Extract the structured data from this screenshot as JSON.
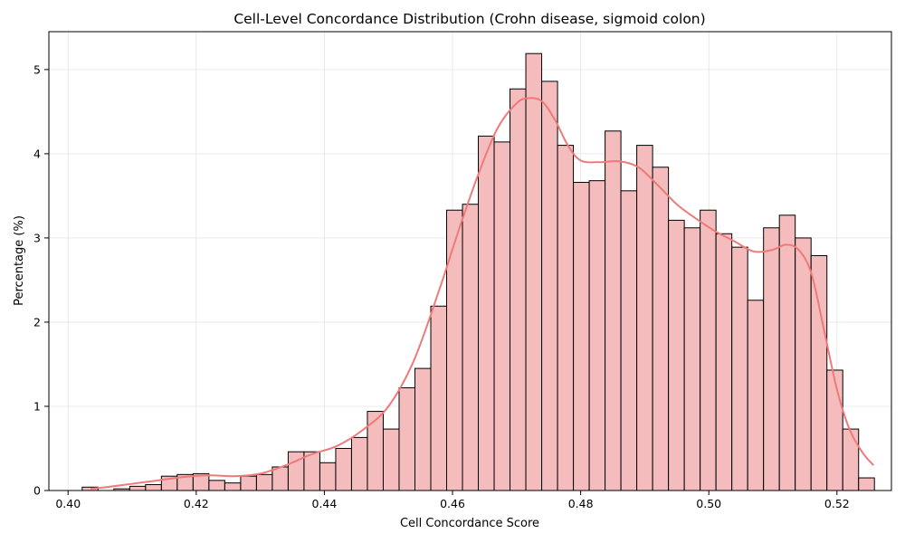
{
  "chart_data": {
    "type": "bar",
    "subtype": "histogram",
    "title": "Cell-Level Concordance Distribution (Crohn disease, sigmoid colon)",
    "xlabel": "Cell Concordance Score",
    "ylabel": "Percentage (%)",
    "xlim": [
      0.397,
      0.5285
    ],
    "ylim": [
      0,
      5.45
    ],
    "xticks": [
      0.4,
      0.42,
      0.44,
      0.46,
      0.48,
      0.5,
      0.52
    ],
    "xtick_labels": [
      "0.40",
      "0.42",
      "0.44",
      "0.46",
      "0.48",
      "0.50",
      "0.52"
    ],
    "yticks": [
      0,
      1,
      2,
      3,
      4,
      5
    ],
    "ytick_labels": [
      "0",
      "1",
      "2",
      "3",
      "4",
      "5"
    ],
    "grid": true,
    "legend": "none",
    "bin_start": 0.4022,
    "bin_width": 0.002473,
    "values": [
      0.04,
      0.0,
      0.02,
      0.05,
      0.07,
      0.17,
      0.19,
      0.2,
      0.12,
      0.09,
      0.17,
      0.19,
      0.28,
      0.46,
      0.46,
      0.33,
      0.5,
      0.63,
      0.94,
      0.73,
      1.22,
      1.45,
      2.19,
      3.33,
      3.4,
      4.21,
      4.14,
      4.77,
      5.19,
      4.86,
      4.1,
      3.66,
      3.68,
      4.27,
      3.56,
      4.1,
      3.84,
      3.21,
      3.12,
      3.33,
      3.05,
      2.89,
      2.26,
      3.12,
      3.27,
      3.0,
      2.79,
      1.43,
      0.73,
      0.15
    ],
    "kde": {
      "x": [
        0.4035,
        0.406,
        0.41,
        0.414,
        0.418,
        0.422,
        0.426,
        0.43,
        0.434,
        0.438,
        0.442,
        0.446,
        0.45,
        0.454,
        0.458,
        0.461,
        0.464,
        0.467,
        0.47,
        0.472,
        0.474,
        0.476,
        0.478,
        0.48,
        0.483,
        0.486,
        0.489,
        0.492,
        0.495,
        0.498,
        0.501,
        0.504,
        0.507,
        0.51,
        0.512,
        0.514,
        0.516,
        0.518,
        0.52,
        0.522,
        0.524,
        0.5257
      ],
      "y": [
        0.02,
        0.04,
        0.08,
        0.12,
        0.16,
        0.18,
        0.17,
        0.2,
        0.3,
        0.43,
        0.53,
        0.72,
        1.0,
        1.55,
        2.4,
        3.1,
        3.75,
        4.3,
        4.6,
        4.66,
        4.62,
        4.4,
        4.1,
        3.92,
        3.9,
        3.91,
        3.84,
        3.63,
        3.4,
        3.23,
        3.08,
        2.96,
        2.84,
        2.86,
        2.92,
        2.86,
        2.58,
        1.9,
        1.2,
        0.72,
        0.45,
        0.3
      ]
    },
    "colors": {
      "bar_fill": "#f4bcbc",
      "bar_edge": "#000000",
      "kde_line": "#ef7a7a"
    }
  }
}
